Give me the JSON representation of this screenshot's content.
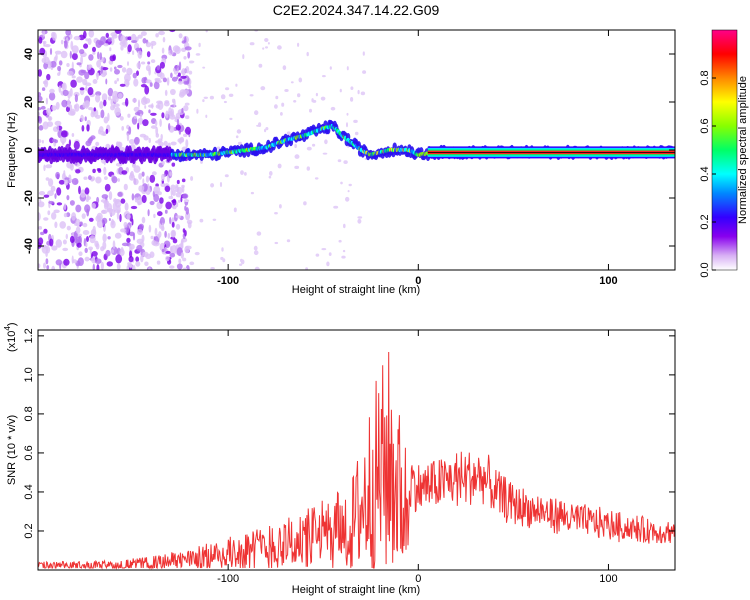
{
  "title": "C2E2.2024.347.14.22.G09",
  "chart_data": [
    {
      "type": "heatmap",
      "xlabel": "Height of straight line (km)",
      "ylabel": "Frequency (Hz)",
      "xlim": [
        -200,
        135
      ],
      "ylim": [
        -50,
        50
      ],
      "xticks": [
        -100,
        0,
        100
      ],
      "yticks": [
        -40,
        -20,
        0,
        20,
        40
      ],
      "colorbar": {
        "label": "Normalized spectral amplitude",
        "ticks": [
          0.0,
          0.2,
          0.4,
          0.6,
          0.8
        ],
        "range": [
          0,
          1
        ],
        "colors": [
          "#ffffff",
          "#d8b0f4",
          "#8800ee",
          "#3300ff",
          "#0088ff",
          "#00ffff",
          "#00ff66",
          "#88ff00",
          "#ffff00",
          "#ff8800",
          "#ff0000",
          "#ff0088"
        ]
      },
      "ridge": {
        "x": [
          -125,
          -110,
          -100,
          -90,
          -80,
          -70,
          -60,
          -50,
          -45,
          -40,
          -35,
          -30,
          -25,
          -20,
          -15,
          -10,
          -5,
          0,
          10,
          20,
          40,
          60,
          80,
          100,
          120,
          135
        ],
        "y": [
          -2,
          -2,
          -1,
          0,
          1,
          4,
          6,
          9,
          10,
          6,
          3,
          0,
          -2,
          -1,
          0,
          0,
          0,
          -2,
          -1,
          -1,
          -1,
          -1,
          -1,
          -1,
          -1,
          -1
        ]
      }
    },
    {
      "type": "line",
      "xlabel": "Height of straight line (km)",
      "ylabel": "SNR (10 * v/v)",
      "yunit": "(x10",
      "yunit_exp": "4",
      "yunit_close": ")",
      "xlim": [
        -200,
        135
      ],
      "ylim": [
        0,
        1.23
      ],
      "xticks": [
        -100,
        0,
        100
      ],
      "yticks": [
        0.2,
        0.4,
        0.6,
        0.8,
        1.0,
        1.2
      ],
      "series": [
        {
          "color": "#ee3333",
          "envelope_x": [
            -200,
            -160,
            -140,
            -120,
            -100,
            -80,
            -60,
            -50,
            -40,
            -35,
            -30,
            -25,
            -20,
            -15,
            -10,
            -5,
            0,
            10,
            20,
            30,
            35,
            40,
            50,
            60,
            80,
            100,
            120,
            135
          ],
          "envelope_y": [
            0.03,
            0.035,
            0.05,
            0.08,
            0.12,
            0.17,
            0.22,
            0.26,
            0.3,
            0.45,
            0.65,
            0.85,
            1.0,
            1.1,
            0.8,
            0.58,
            0.52,
            0.55,
            0.58,
            0.6,
            0.58,
            0.5,
            0.42,
            0.38,
            0.33,
            0.29,
            0.25,
            0.24
          ]
        }
      ]
    }
  ]
}
